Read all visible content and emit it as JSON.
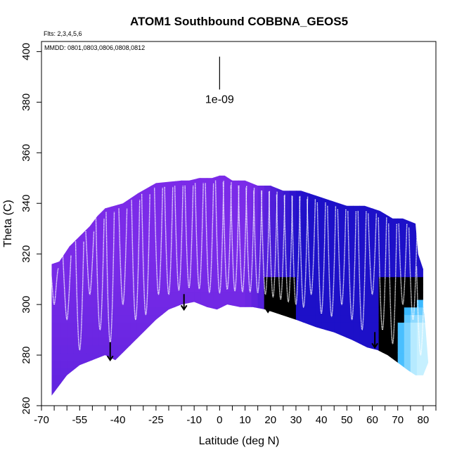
{
  "chart_data": {
    "type": "heatmap",
    "title": "ATOM1 Southbound COBBNA_GEOS5",
    "flights_note": "Flts: 2,3,4,5,6",
    "dates_note": "MMDD: 0801,0803,0806,0808,0812",
    "xlabel": "Latitude (deg N)",
    "ylabel": "Theta (C)",
    "xlim": [
      -70,
      85
    ],
    "ylim": [
      260,
      404
    ],
    "x_ticks": [
      -70,
      -55,
      -40,
      -25,
      -10,
      0,
      10,
      20,
      30,
      40,
      50,
      60,
      70,
      80
    ],
    "x_minor_ticks": [
      -65,
      -60,
      -50,
      -45,
      -35,
      -30,
      -20,
      -15,
      -5,
      5,
      15,
      25,
      35,
      45,
      55,
      65,
      75,
      85
    ],
    "y_ticks": [
      260,
      280,
      300,
      320,
      340,
      360,
      380,
      400
    ],
    "scale_bar": {
      "label": "1e-09",
      "x": 0,
      "y_top": 398,
      "y_bottom": 385
    },
    "colors": {
      "low": "#7b2be8",
      "mid": "#1d10c8",
      "high": "#33b6ff",
      "peak": "#c6f0ff",
      "profile": "#ffffff",
      "arrow": "#000000"
    },
    "top_boundary": [
      [
        -66,
        316
      ],
      [
        -63,
        317
      ],
      [
        -61,
        320
      ],
      [
        -59,
        323
      ],
      [
        -55,
        327
      ],
      [
        -51,
        331
      ],
      [
        -48,
        335
      ],
      [
        -45,
        338
      ],
      [
        -38,
        340
      ],
      [
        -32,
        344
      ],
      [
        -25,
        348
      ],
      [
        -15,
        349
      ],
      [
        -12,
        349
      ],
      [
        -8,
        350
      ],
      [
        -3,
        350
      ],
      [
        0,
        351
      ],
      [
        2,
        351
      ],
      [
        5,
        349
      ],
      [
        10,
        349
      ],
      [
        15,
        347
      ],
      [
        20,
        347
      ],
      [
        25,
        345
      ],
      [
        32,
        345
      ],
      [
        38,
        343
      ],
      [
        44,
        341
      ],
      [
        50,
        339
      ],
      [
        57,
        339
      ],
      [
        63,
        337
      ],
      [
        68,
        334
      ],
      [
        72,
        334
      ],
      [
        77,
        332
      ],
      [
        78,
        320
      ],
      [
        80,
        314
      ],
      [
        80,
        300
      ],
      [
        81,
        290
      ],
      [
        82,
        277
      ]
    ],
    "bottom_boundary": [
      [
        -66,
        264
      ],
      [
        -60,
        272
      ],
      [
        -55,
        276
      ],
      [
        -50,
        278
      ],
      [
        -45,
        280
      ],
      [
        -41,
        278
      ],
      [
        -35,
        284
      ],
      [
        -30,
        289
      ],
      [
        -25,
        294
      ],
      [
        -20,
        298
      ],
      [
        -15,
        300
      ],
      [
        -10,
        301
      ],
      [
        -5,
        299
      ],
      [
        -1,
        298
      ],
      [
        3,
        300
      ],
      [
        8,
        299
      ],
      [
        13,
        299
      ],
      [
        18,
        298
      ],
      [
        24,
        296
      ],
      [
        30,
        294
      ],
      [
        38,
        291
      ],
      [
        45,
        289
      ],
      [
        52,
        286
      ],
      [
        58,
        283
      ],
      [
        62,
        282
      ],
      [
        66,
        280
      ],
      [
        70,
        277
      ],
      [
        74,
        274
      ],
      [
        77,
        272
      ],
      [
        80,
        272
      ]
    ],
    "vertical_profiles_lat": [
      -65,
      -60,
      -55,
      -51,
      -47,
      -43,
      -38,
      -33,
      -29,
      -24,
      -20,
      -16,
      -12,
      -8,
      -4,
      0,
      3,
      6,
      9,
      12,
      15,
      18,
      21,
      24,
      27,
      30,
      33,
      36,
      40,
      44,
      48,
      52,
      56,
      60,
      64,
      68,
      72,
      76,
      79
    ],
    "arrows": [
      {
        "x": -43,
        "y_top": 284,
        "y_bottom": 278
      },
      {
        "x": -14,
        "y_top": 303,
        "y_bottom": 298
      },
      {
        "x": 19,
        "y_top": 303,
        "y_bottom": 297
      },
      {
        "x": 61,
        "y_top": 288,
        "y_bottom": 283
      }
    ]
  }
}
